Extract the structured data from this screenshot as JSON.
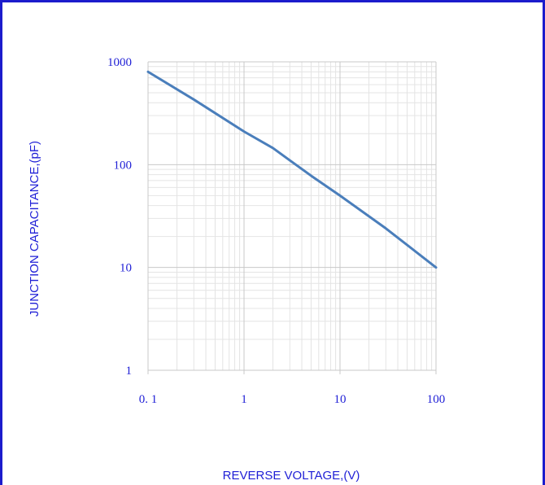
{
  "chart_data": {
    "type": "line",
    "xscale": "log",
    "yscale": "log",
    "xlim": [
      0.1,
      100
    ],
    "ylim": [
      1,
      1000
    ],
    "grid": true,
    "xlabel": "REVERSE VOLTAGE,(V)",
    "ylabel": "JUNCTION CAPACITANCE,(pF)",
    "x_ticks": [
      {
        "value": 0.1,
        "label": "0. 1"
      },
      {
        "value": 1,
        "label": "1"
      },
      {
        "value": 10,
        "label": "10"
      },
      {
        "value": 100,
        "label": "100"
      }
    ],
    "y_ticks": [
      {
        "value": 1,
        "label": "1"
      },
      {
        "value": 10,
        "label": "10"
      },
      {
        "value": 100,
        "label": "100"
      },
      {
        "value": 1000,
        "label": "1000"
      }
    ],
    "series": [
      {
        "color": "#4a7ebb",
        "x": [
          0.1,
          0.3,
          1,
          2,
          3,
          5,
          10,
          30,
          100
        ],
        "y": [
          800,
          430,
          210,
          145,
          110,
          78,
          50,
          24,
          10
        ]
      }
    ]
  },
  "colors": {
    "frame": "#1c1ccc",
    "text": "#1f1fd6",
    "grid_major": "#c8c8c8",
    "grid_minor": "#e4e4e4"
  }
}
